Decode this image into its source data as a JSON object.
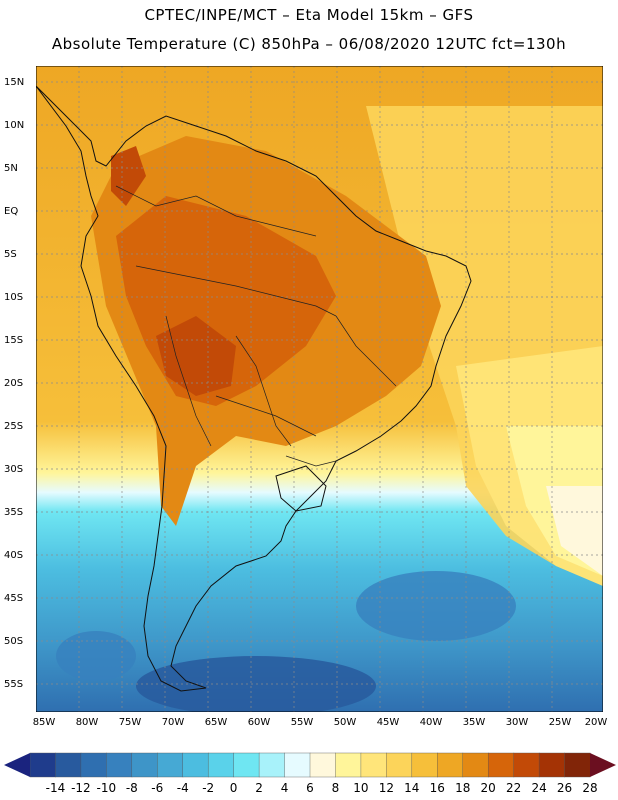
{
  "header": {
    "line1": "CPTEC/INPE/MCT –  Eta Model 15km – GFS",
    "line2": "Absolute Temperature (C) 850hPa – 06/08/2020 12UTC fct=130h"
  },
  "map": {
    "lat_labels": [
      "15N",
      "10N",
      "5N",
      "EQ",
      "5S",
      "10S",
      "15S",
      "20S",
      "25S",
      "30S",
      "35S",
      "40S",
      "45S",
      "50S",
      "55S"
    ],
    "lon_labels": [
      "85W",
      "80W",
      "75W",
      "70W",
      "65W",
      "60W",
      "55W",
      "50W",
      "45W",
      "40W",
      "35W",
      "30W",
      "25W",
      "20W"
    ]
  },
  "colorbar": {
    "labels": [
      "-14",
      "-12",
      "-10",
      "-8",
      "-6",
      "-4",
      "-2",
      "0",
      "2",
      "4",
      "6",
      "8",
      "10",
      "12",
      "14",
      "16",
      "18",
      "20",
      "22",
      "24",
      "26",
      "28"
    ],
    "colors": [
      "#1f3c8c",
      "#285a9e",
      "#2f6fb0",
      "#3781be",
      "#3e95c8",
      "#46a9d4",
      "#4cbde0",
      "#5ad2ea",
      "#6fe6f2",
      "#a8f2fa",
      "#e6fbff",
      "#fff8dc",
      "#fff59a",
      "#ffe57a",
      "#fcd45a",
      "#f6bf3a",
      "#eea724",
      "#e38914",
      "#d6650a",
      "#c24a07",
      "#a43305",
      "#812508"
    ],
    "below_color": "#1a237e",
    "above_color": "#6b0f20"
  }
}
